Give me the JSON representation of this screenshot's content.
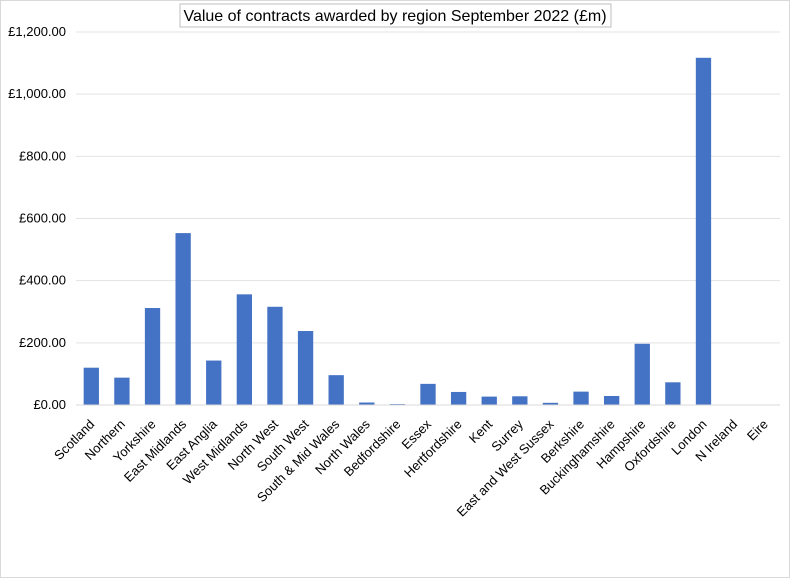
{
  "chart_data": {
    "type": "bar",
    "title": "Value of contracts awarded by region September 2022 (£m)",
    "xlabel": "",
    "ylabel": "",
    "ylim": [
      0,
      1200
    ],
    "yticks": [
      "£0.00",
      "£200.00",
      "£400.00",
      "£600.00",
      "£800.00",
      "£1,000.00",
      "£1,200.00"
    ],
    "ytick_values": [
      0,
      200,
      400,
      600,
      800,
      1000,
      1200
    ],
    "grid": true,
    "bar_color": "#4472C4",
    "categories": [
      "Scotland",
      "Northern",
      "Yorkshire",
      "East Midlands",
      "East Anglia",
      "West Midlands",
      "North West",
      "South West",
      "South & Mid Wales",
      "North Wales",
      "Bedfordshire",
      "Essex",
      "Hertfordshire",
      "Kent",
      "Surrey",
      "East and West Sussex",
      "Berkshire",
      "Buckinghamshire",
      "Hampshire",
      "Oxfordshire",
      "London",
      "N Ireland",
      "Eire"
    ],
    "values": [
      120,
      88,
      312,
      553,
      143,
      356,
      316,
      238,
      96,
      8,
      3,
      68,
      42,
      27,
      28,
      7,
      43,
      29,
      197,
      73,
      1117,
      0,
      0
    ]
  }
}
